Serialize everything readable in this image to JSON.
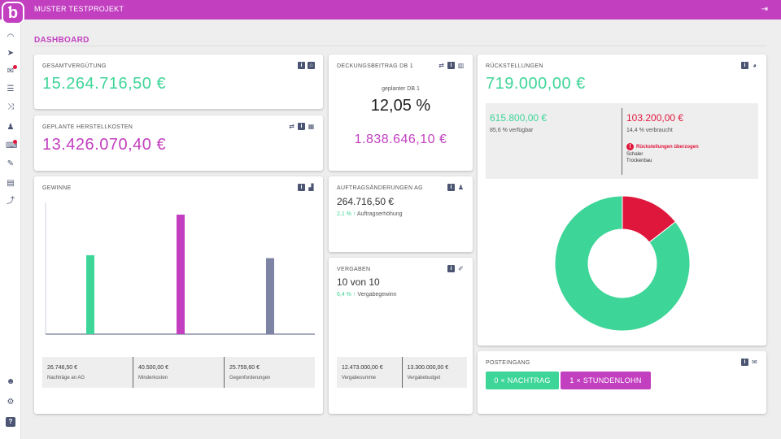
{
  "app": {
    "project_title": "MUSTER TESTPROJEKT"
  },
  "page": {
    "title": "DASHBOARD"
  },
  "colors": {
    "brand": "#c23fc0",
    "green": "#3ed598",
    "red": "#e0173c",
    "slate": "#7e84a3",
    "icon": "#4b5573"
  },
  "sidebar": {
    "items": [
      {
        "icon": "gauge-icon",
        "glyph": "◠"
      },
      {
        "icon": "send-icon",
        "glyph": "➤"
      },
      {
        "icon": "mail-icon",
        "glyph": "✉",
        "badge": true
      },
      {
        "icon": "list-icon",
        "glyph": "☰"
      },
      {
        "icon": "shuffle-icon",
        "glyph": "⤨"
      },
      {
        "icon": "user-icon",
        "glyph": "♟"
      },
      {
        "icon": "cart-icon",
        "glyph": "⌨",
        "badge": true
      },
      {
        "icon": "pencil-icon",
        "glyph": "✎"
      },
      {
        "icon": "badge-icon",
        "glyph": "▤"
      },
      {
        "icon": "chart-icon",
        "glyph": "⤴"
      }
    ],
    "bottom": [
      {
        "icon": "users-icon",
        "glyph": "☻"
      },
      {
        "icon": "settings-icon",
        "glyph": "⚙"
      },
      {
        "icon": "help-icon",
        "glyph": "?"
      }
    ]
  },
  "gesamt": {
    "label": "GESAMTVERGÜTUNG",
    "value": "15.264.716,50 €"
  },
  "hk": {
    "label": "GEPLANTE HERSTELLKOSTEN",
    "value": "13.426.070,40 €"
  },
  "db": {
    "label": "DECKUNGSBEITRAG DB 1",
    "sublabel": "geplanter DB 1",
    "percent": "12,05 %",
    "value": "1.838.646,10 €"
  },
  "rueck": {
    "label": "RÜCKSTELLUNGEN",
    "value": "719.000,00 €",
    "available_value": "615.800,00 €",
    "available_label": "85,6 % verfügbar",
    "used_value": "103.200,00 €",
    "used_label": "14,4 % verbraucht",
    "warning": "Rückstellungen überzogen",
    "warning_items": [
      "Schaler",
      "Trockenbau"
    ]
  },
  "gewinne": {
    "label": "GEWINNE",
    "stats": [
      {
        "value": "26.746,50 €",
        "label": "Nachträge an AG"
      },
      {
        "value": "40.500,00 €",
        "label": "Minderkosten"
      },
      {
        "value": "25.759,60 €",
        "label": "Gegenforderungen"
      }
    ]
  },
  "auftrag": {
    "label": "AUFTRAGSÄNDERUNGEN AG",
    "value": "264.716,50 €",
    "pct": "2,1 %",
    "arrow": "↑",
    "text": "Auftragserhöhung"
  },
  "vergaben": {
    "label": "VERGABEN",
    "value": "10 von 10",
    "pct": "6,4 %",
    "arrow": "↑",
    "text": "Vergabegewinn",
    "stats": [
      {
        "value": "12.473.000,00 €",
        "label": "Vergabesumme"
      },
      {
        "value": "13.300.000,00 €",
        "label": "Vergabebudget"
      }
    ]
  },
  "posteingang": {
    "label": "POSTEINGANG",
    "btn_nachtrag": "0 × NACHTRAG",
    "btn_stunden": "1 × STUNDENLOHN"
  },
  "chart_data": [
    {
      "type": "bar",
      "categories": [
        "Nachträge an AG",
        "Minderkosten",
        "Gegenforderungen"
      ],
      "values": [
        26746.5,
        40500,
        25759.6
      ],
      "colors": [
        "#3ed598",
        "#c23fc0",
        "#7e84a3"
      ]
    },
    {
      "type": "pie",
      "labels": [
        "verfügbar",
        "verbraucht"
      ],
      "values": [
        85.6,
        14.4
      ],
      "colors": [
        "#3ed598",
        "#e0173c"
      ]
    }
  ]
}
